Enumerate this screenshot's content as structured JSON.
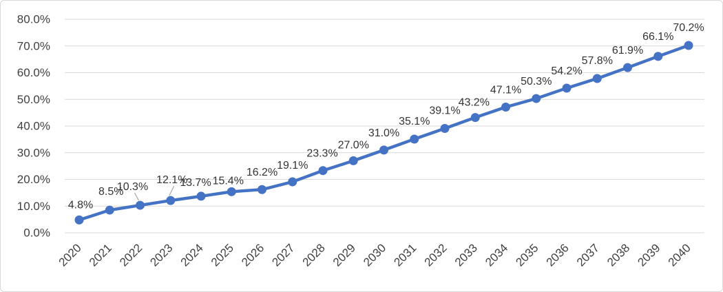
{
  "window": {
    "background": "#FFFFFF",
    "border_color": "#D9D9D9"
  },
  "chart_data": {
    "type": "line",
    "title": "",
    "xlabel": "",
    "ylabel": "",
    "categories": [
      "2020",
      "2021",
      "2022",
      "2023",
      "2024",
      "2025",
      "2026",
      "2027",
      "2028",
      "2029",
      "2030",
      "2031",
      "2032",
      "2033",
      "2034",
      "2035",
      "2036",
      "2037",
      "2038",
      "2039",
      "2040"
    ],
    "values": [
      4.8,
      8.5,
      10.3,
      12.1,
      13.7,
      15.4,
      16.2,
      19.1,
      23.3,
      27.0,
      31.0,
      35.1,
      39.1,
      43.2,
      47.1,
      50.3,
      54.2,
      57.8,
      61.9,
      66.1,
      70.2
    ],
    "data_labels": [
      "4.8%",
      "8.5%",
      "10.3%",
      "12.1%",
      "13.7%",
      "15.4%",
      "16.2%",
      "19.1%",
      "23.3%",
      "27.0%",
      "31.0%",
      "35.1%",
      "39.1%",
      "43.2%",
      "47.1%",
      "50.3%",
      "54.2%",
      "57.8%",
      "61.9%",
      "66.1%",
      "70.2%"
    ],
    "y_tick_labels": [
      "0.0%",
      "10.0%",
      "20.0%",
      "30.0%",
      "40.0%",
      "50.0%",
      "60.0%",
      "70.0%",
      "80.0%"
    ],
    "ylim": [
      0,
      80
    ],
    "y_tick_step": 10,
    "grid": true,
    "legend": "none",
    "labels_with_leader_lines": [
      "10.3%",
      "12.1%"
    ],
    "colors": {
      "line": "#4472C4",
      "marker": "#4472C4",
      "gridline": "#D9D9D9",
      "axis_text": "#404040",
      "data_label_text": "#333333",
      "leader_line": "#A6A6A6",
      "chart_border": "#D9D9D9",
      "background": "#FFFFFF"
    }
  }
}
